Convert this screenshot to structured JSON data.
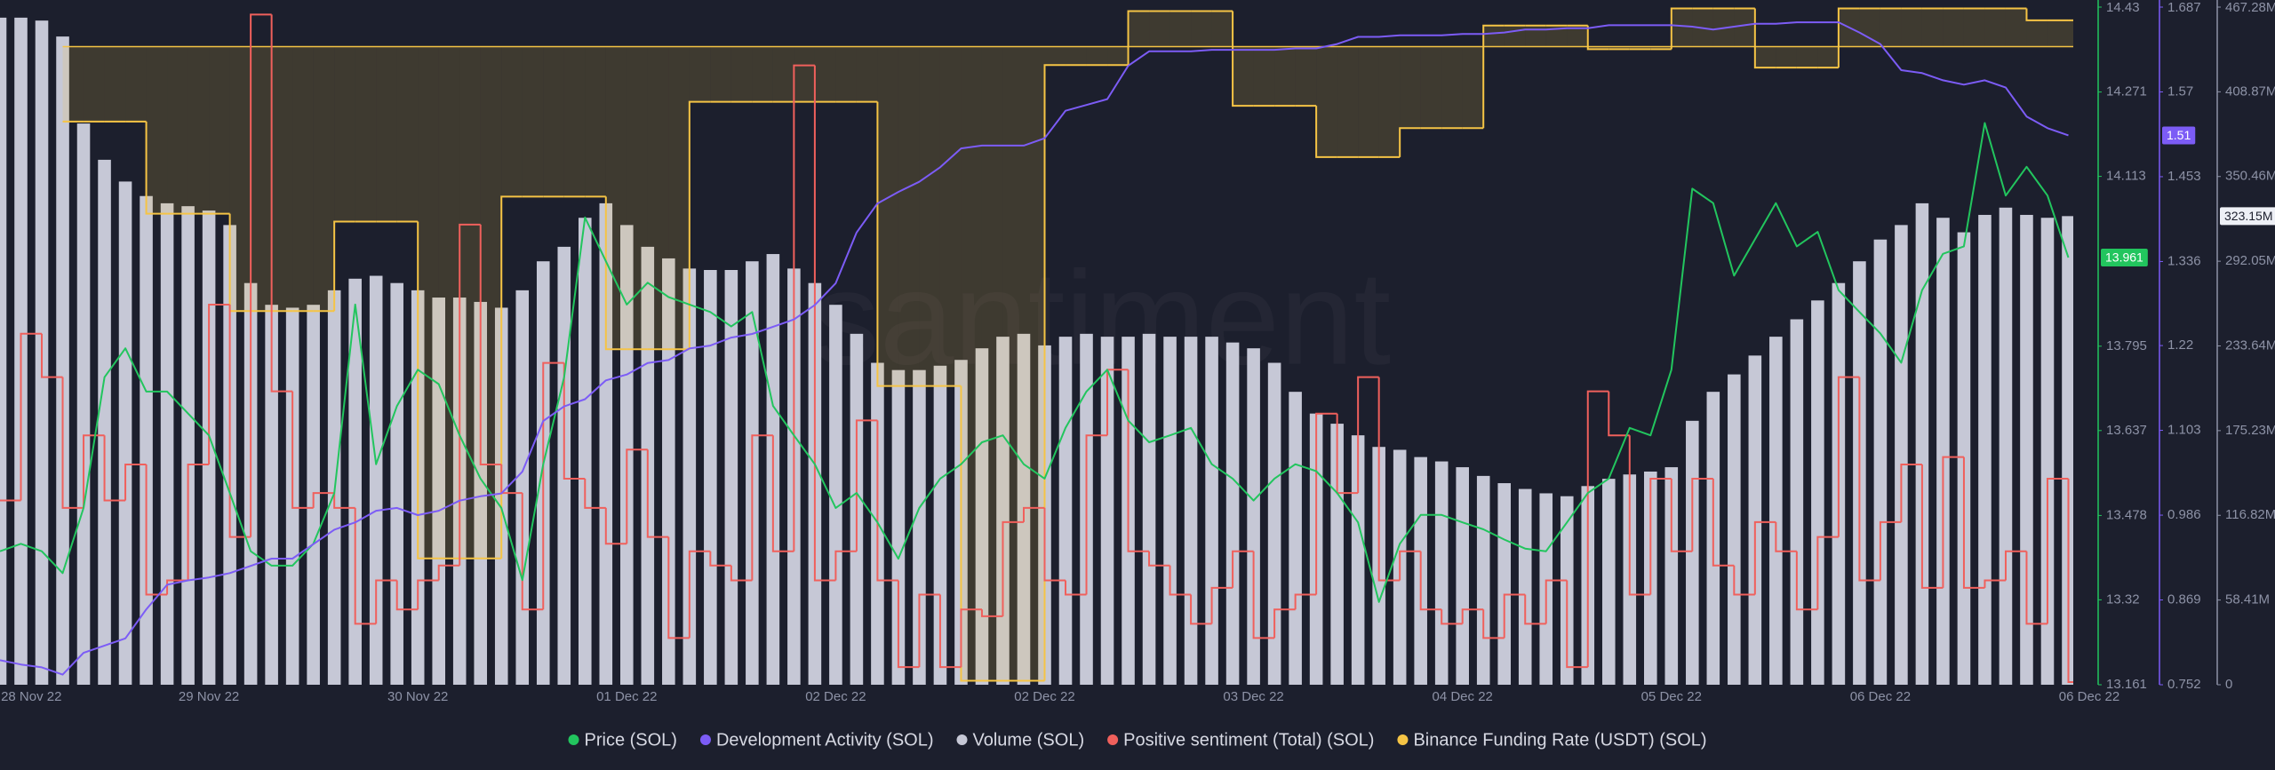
{
  "chart_data": {
    "type": "line",
    "watermark": "santiment",
    "xlim": [
      0,
      100
    ],
    "xticks": [
      {
        "value": 1.5,
        "label": "28 Nov 22"
      },
      {
        "value": 10,
        "label": "29 Nov 22"
      },
      {
        "value": 20,
        "label": "30 Nov 22"
      },
      {
        "value": 30,
        "label": "01 Dec 22"
      },
      {
        "value": 40,
        "label": "02 Dec 22"
      },
      {
        "value": 50,
        "label": "02 Dec 22"
      },
      {
        "value": 60,
        "label": "03 Dec 22"
      },
      {
        "value": 70,
        "label": "04 Dec 22"
      },
      {
        "value": 80,
        "label": "05 Dec 22"
      },
      {
        "value": 90,
        "label": "06 Dec 22"
      },
      {
        "value": 100,
        "label": "06 Dec 22"
      }
    ],
    "ylim": [
      13.161,
      14.43
    ],
    "yticks": [
      13.161,
      13.32,
      13.478,
      13.637,
      13.795,
      14.113,
      14.271,
      14.43
    ],
    "y2lim": [
      0.752,
      1.687
    ],
    "y2ticks": [
      0.752,
      0.869,
      0.986,
      1.103,
      1.22,
      1.336,
      1.453,
      1.57,
      1.687
    ],
    "y3lim": [
      0,
      467280000
    ],
    "y3ticks": [
      0,
      {
        "value": 58410000,
        "label": "58.41M"
      },
      {
        "value": 116820000,
        "label": "116.82M"
      },
      {
        "value": 175230000,
        "label": "175.23M"
      },
      {
        "value": 233640000,
        "label": "233.64M"
      },
      {
        "value": 292050000,
        "label": "292.05M"
      },
      {
        "value": 350460000,
        "label": "350.46M"
      },
      {
        "value": 408870000,
        "label": "408.87M"
      },
      {
        "value": 467280000,
        "label": "467.28M"
      }
    ],
    "series": [
      {
        "name": "Price (SOL)",
        "type": "line",
        "axis": "y",
        "color": "#22c55e",
        "last_label": "13.961",
        "values": [
          13.411,
          13.425,
          13.411,
          13.37,
          13.492,
          13.737,
          13.791,
          13.71,
          13.71,
          13.669,
          13.628,
          13.52,
          13.411,
          13.384,
          13.384,
          13.425,
          13.52,
          13.873,
          13.574,
          13.683,
          13.751,
          13.724,
          13.628,
          13.547,
          13.492,
          13.357,
          13.574,
          13.737,
          14.036,
          13.954,
          13.873,
          13.914,
          13.887,
          13.873,
          13.859,
          13.832,
          13.859,
          13.683,
          13.628,
          13.574,
          13.492,
          13.52,
          13.465,
          13.397,
          13.492,
          13.547,
          13.574,
          13.615,
          13.628,
          13.574,
          13.547,
          13.642,
          13.71,
          13.751,
          13.656,
          13.615,
          13.628,
          13.642,
          13.574,
          13.547,
          13.506,
          13.547,
          13.574,
          13.561,
          13.52,
          13.465,
          13.316,
          13.425,
          13.479,
          13.479,
          13.465,
          13.452,
          13.433,
          13.416,
          13.411,
          13.465,
          13.52,
          13.547,
          13.642,
          13.628,
          13.751,
          14.09,
          14.063,
          13.927,
          13.995,
          14.063,
          13.982,
          14.009,
          13.9,
          13.859,
          13.819,
          13.764,
          13.9,
          13.968,
          13.982,
          14.213,
          14.077,
          14.131,
          14.077,
          13.961
        ]
      },
      {
        "name": "Development Activity (SOL)",
        "type": "line",
        "axis": "y2",
        "color": "#7c5cf6",
        "last_label": "1.51",
        "values": [
          0.786,
          0.78,
          0.776,
          0.766,
          0.796,
          0.806,
          0.816,
          0.856,
          0.89,
          0.896,
          0.9,
          0.906,
          0.916,
          0.926,
          0.926,
          0.946,
          0.966,
          0.976,
          0.992,
          0.996,
          0.986,
          0.992,
          1.006,
          1.012,
          1.016,
          1.046,
          1.116,
          1.136,
          1.146,
          1.172,
          1.18,
          1.196,
          1.2,
          1.216,
          1.22,
          1.231,
          1.236,
          1.246,
          1.256,
          1.276,
          1.306,
          1.376,
          1.416,
          1.432,
          1.446,
          1.466,
          1.492,
          1.496,
          1.496,
          1.496,
          1.506,
          1.544,
          1.552,
          1.56,
          1.606,
          1.626,
          1.626,
          1.626,
          1.628,
          1.628,
          1.628,
          1.628,
          1.63,
          1.63,
          1.636,
          1.646,
          1.646,
          1.648,
          1.648,
          1.648,
          1.65,
          1.65,
          1.652,
          1.656,
          1.656,
          1.658,
          1.658,
          1.662,
          1.662,
          1.662,
          1.662,
          1.66,
          1.656,
          1.66,
          1.664,
          1.664,
          1.666,
          1.666,
          1.666,
          1.652,
          1.636,
          1.6,
          1.596,
          1.586,
          1.58,
          1.586,
          1.576,
          1.536,
          1.52,
          1.51
        ]
      },
      {
        "name": "Volume (SOL)",
        "type": "bar",
        "axis": "y3",
        "color": "#c6c8d6",
        "last_label": "323.15M",
        "values": [
          460000000,
          460000000,
          458000000,
          447000000,
          387000000,
          362000000,
          347000000,
          337000000,
          332000000,
          330000000,
          327000000,
          317000000,
          277000000,
          262000000,
          260000000,
          262000000,
          272000000,
          280000000,
          282000000,
          277000000,
          272000000,
          267000000,
          267000000,
          264000000,
          260000000,
          272000000,
          292000000,
          302000000,
          322000000,
          332000000,
          317000000,
          302000000,
          294000000,
          287000000,
          286000000,
          286000000,
          292000000,
          297000000,
          287000000,
          277000000,
          262000000,
          242000000,
          222000000,
          217000000,
          217000000,
          220000000,
          224000000,
          232000000,
          240000000,
          242000000,
          234000000,
          240000000,
          242000000,
          240000000,
          240000000,
          242000000,
          240000000,
          240000000,
          240000000,
          236000000,
          232000000,
          222000000,
          202000000,
          187000000,
          180000000,
          172000000,
          164000000,
          162000000,
          157000000,
          154000000,
          150000000,
          144000000,
          139000000,
          135000000,
          132000000,
          130000000,
          137000000,
          142000000,
          145000000,
          147000000,
          150000000,
          182000000,
          202000000,
          214000000,
          227000000,
          240000000,
          252000000,
          265000000,
          277000000,
          292000000,
          307000000,
          317000000,
          332000000,
          322000000,
          312000000,
          324000000,
          329000000,
          324000000,
          322000000,
          323150000
        ]
      },
      {
        "name": "Positive sentiment (Total) (SOL)",
        "type": "step",
        "color": "#f0605c",
        "ylim": [
          0,
          100
        ],
        "values": [
          27.2,
          51.8,
          45.4,
          26.1,
          36.8,
          27.2,
          32.5,
          13.3,
          15.4,
          32.5,
          56.1,
          21.8,
          98.9,
          43.3,
          26.1,
          28.3,
          26.1,
          9.0,
          15.4,
          11.1,
          15.4,
          17.6,
          67.9,
          32.5,
          28.3,
          11.1,
          47.5,
          30.4,
          26.1,
          20.8,
          34.7,
          21.8,
          6.9,
          19.7,
          17.6,
          15.4,
          36.8,
          19.7,
          91.4,
          15.4,
          19.7,
          39.0,
          15.4,
          2.6,
          13.3,
          2.6,
          11.1,
          10.1,
          24.0,
          26.1,
          15.4,
          13.3,
          36.8,
          46.5,
          19.7,
          17.6,
          13.3,
          9.0,
          14.3,
          19.7,
          6.9,
          11.1,
          13.3,
          40.0,
          28.3,
          45.4,
          15.4,
          19.7,
          11.1,
          9.0,
          11.1,
          6.9,
          13.3,
          9.0,
          15.4,
          2.6,
          43.3,
          36.8,
          13.3,
          30.4,
          19.7,
          30.4,
          17.6,
          13.3,
          24.0,
          19.7,
          11.1,
          21.8,
          45.4,
          15.4,
          24.0,
          32.5,
          14.3,
          33.6,
          14.3,
          15.4,
          19.7,
          9.0,
          30.4,
          0.4
        ]
      },
      {
        "name": "Binance Funding Rate (USDT) (SOL)",
        "type": "step",
        "fill": true,
        "color": "#f5c445",
        "ylim": [
          -0.0485,
          0.003
        ],
        "values": [
          null,
          null,
          null,
          -0.0057,
          -0.0057,
          -0.0057,
          -0.0057,
          -0.0127,
          -0.0127,
          -0.0127,
          -0.0127,
          -0.0201,
          -0.0201,
          -0.0201,
          -0.0201,
          -0.0201,
          -0.0133,
          -0.0133,
          -0.0133,
          -0.0133,
          -0.0389,
          -0.0389,
          -0.0389,
          -0.0389,
          -0.0114,
          -0.0114,
          -0.0114,
          -0.0114,
          -0.0114,
          -0.023,
          -0.023,
          -0.023,
          -0.023,
          -0.0042,
          -0.0042,
          -0.0042,
          -0.0042,
          -0.0042,
          -0.0042,
          -0.0042,
          -0.0042,
          -0.0042,
          -0.0258,
          -0.0258,
          -0.0258,
          -0.0258,
          -0.0482,
          -0.0482,
          -0.0482,
          -0.0482,
          -0.0014,
          -0.0014,
          -0.0014,
          -0.0014,
          0.0027,
          0.0027,
          0.0027,
          0.0027,
          0.0027,
          -0.0045,
          -0.0045,
          -0.0045,
          -0.0045,
          -0.0084,
          -0.0084,
          -0.0084,
          -0.0084,
          -0.0062,
          -0.0062,
          -0.0062,
          -0.0062,
          0.0016,
          0.0016,
          0.0016,
          0.0016,
          0.0016,
          -0.0002,
          -0.0002,
          -0.0002,
          -0.0002,
          0.0029,
          0.0029,
          0.0029,
          0.0029,
          -0.0016,
          -0.0016,
          -0.0016,
          -0.0016,
          0.0029,
          0.0029,
          0.0029,
          0.0029,
          0.0029,
          0.0029,
          0.0029,
          0.0029,
          0.0029,
          0.002,
          0.002,
          0.002
        ]
      }
    ]
  }
}
